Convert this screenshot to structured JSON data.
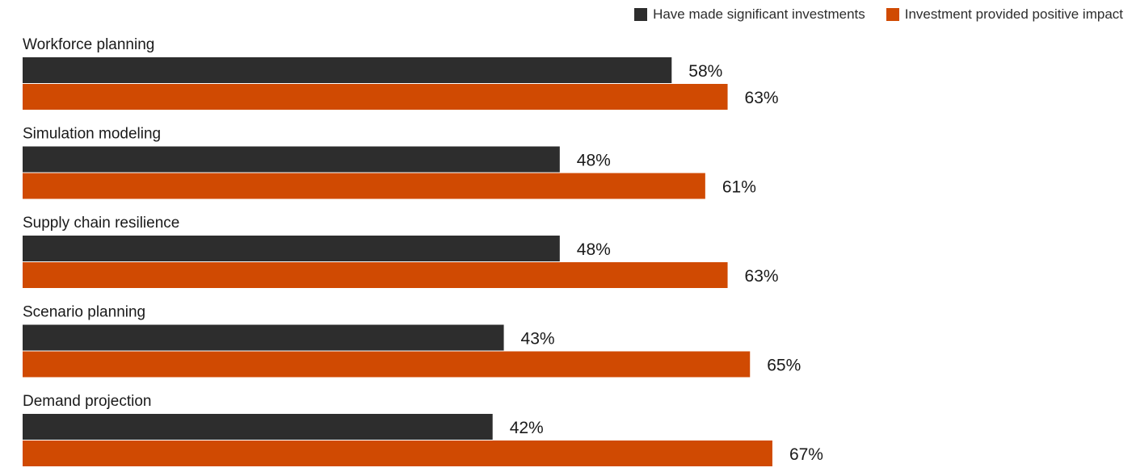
{
  "chart_data": {
    "type": "bar",
    "orientation": "horizontal",
    "categories": [
      "Workforce planning",
      "Simulation modeling",
      "Supply chain resilience",
      "Scenario planning",
      "Demand projection"
    ],
    "series": [
      {
        "name": "Have made significant investments",
        "color": "#2d2d2d",
        "values": [
          58,
          48,
          48,
          43,
          42
        ],
        "labels": [
          "58%",
          "48%",
          "48%",
          "43%",
          "42%"
        ]
      },
      {
        "name": "Investment provided positive impact",
        "color": "#d04a02",
        "values": [
          63,
          61,
          63,
          65,
          67
        ],
        "labels": [
          "63%",
          "61%",
          "63%",
          "65%",
          "67%"
        ]
      }
    ],
    "xlim": [
      0,
      100
    ],
    "grid": false,
    "legend_position": "top-right"
  }
}
